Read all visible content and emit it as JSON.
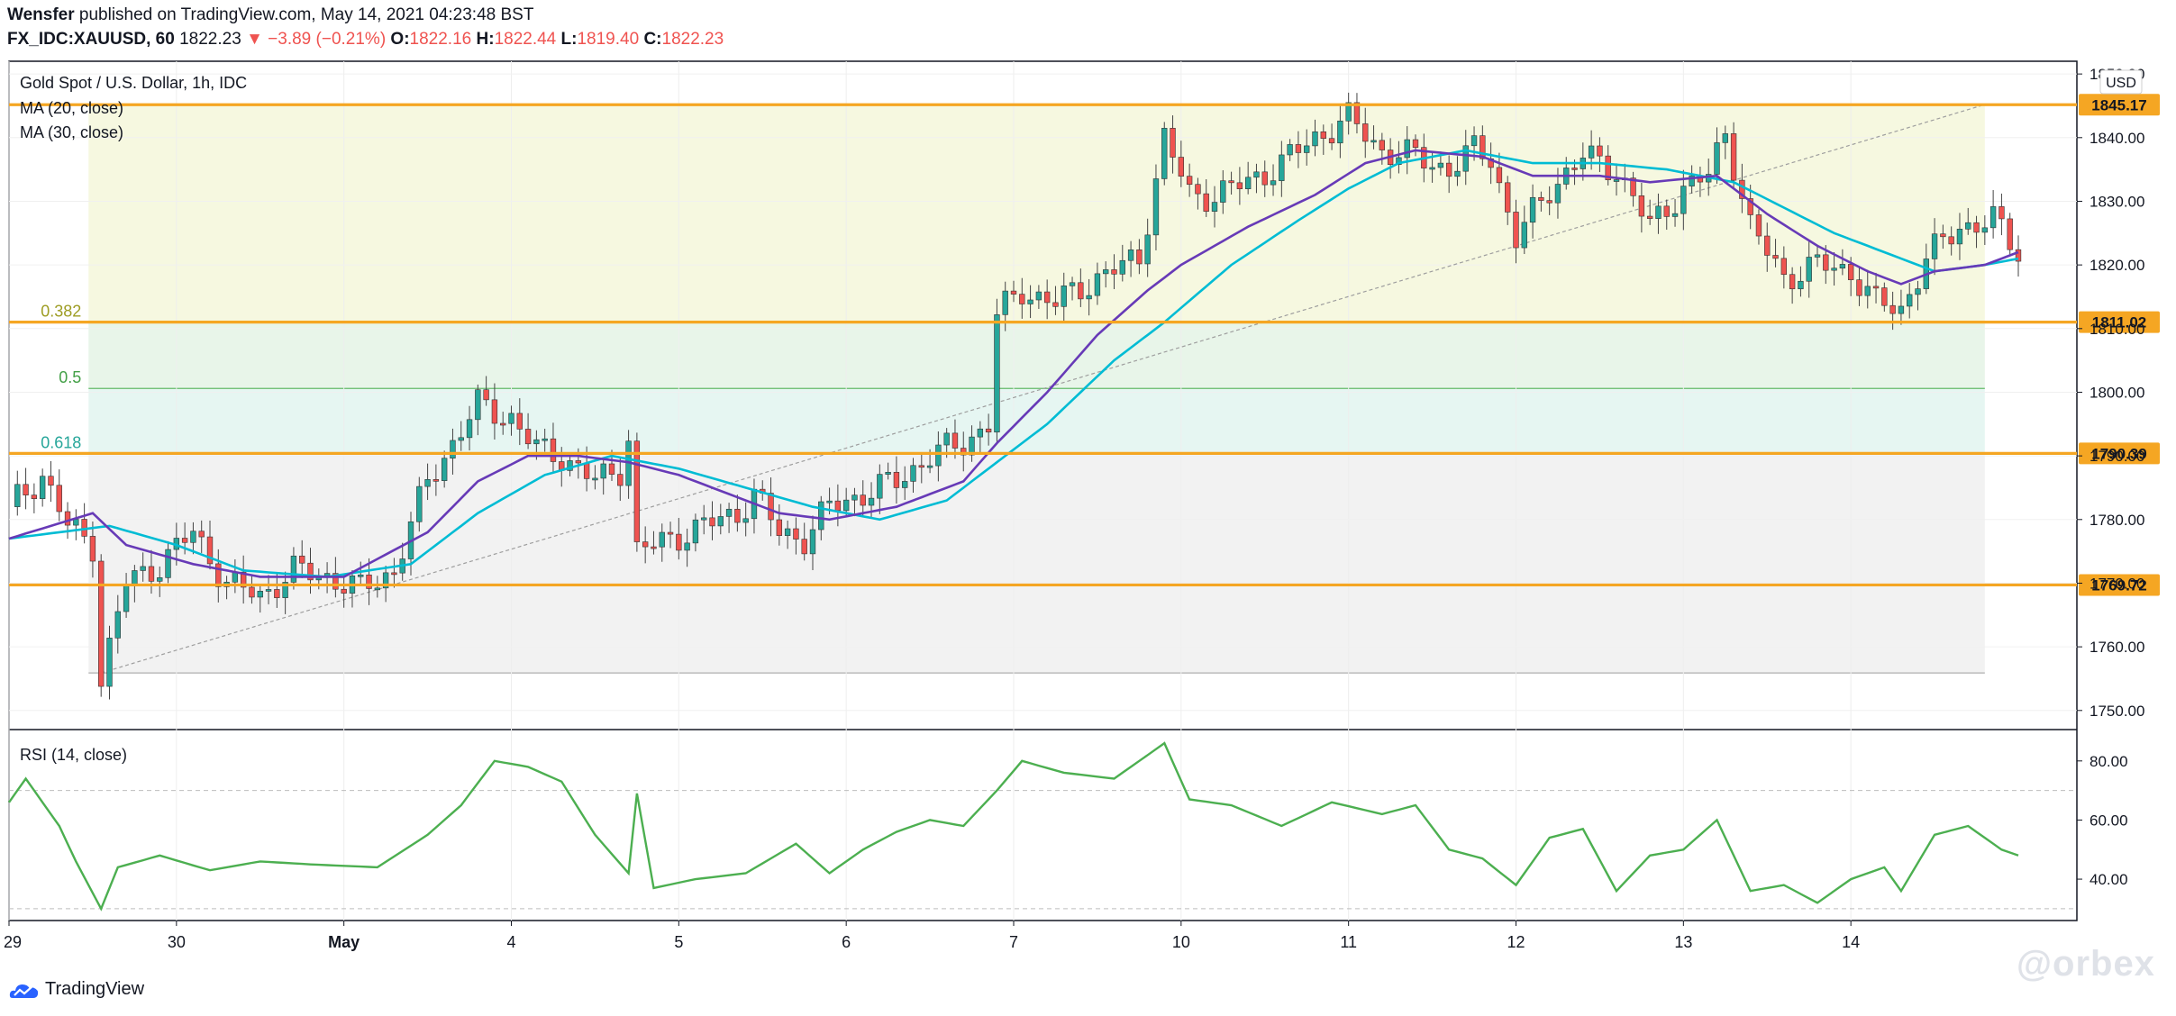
{
  "header": {
    "author": "Wensfer",
    "published": "published on TradingView.com, May 14, 2021 04:23:48 BST",
    "symbol": "FX_IDC:XAUUSD, 60",
    "last": "1822.23",
    "change": "▼ −3.89 (−0.21%)",
    "o_label": "O:",
    "o_value": "1822.16",
    "h_label": "H:",
    "h_value": "1822.44",
    "l_label": "L:",
    "l_value": "1819.40",
    "c_label": "C:",
    "c_value": "1822.23"
  },
  "legend": {
    "title": "Gold Spot / U.S. Dollar, 1h, IDC",
    "ma20": "MA (20, close)",
    "ma30": "MA (30, close)",
    "rsi": "RSI (14, close)"
  },
  "currency": "USD",
  "footer": {
    "logo_text": "TradingView",
    "watermark": "@orbex"
  },
  "colors": {
    "up": "#26a69a",
    "down": "#ef5350",
    "ma20": "#673ab7",
    "ma30": "#00bcd4",
    "hline": "#f5a623",
    "rsi": "#4caf50",
    "fib_0_382": "#f6f8e0",
    "fib_0_5": "#e8f5e9",
    "fib_0_618": "#e6f6f2",
    "fib_1": "#f2f2f2"
  },
  "chart_data": [
    {
      "type": "candlestick",
      "title": "Gold Spot / U.S. Dollar, 1h, IDC",
      "ylim": [
        1747,
        1852
      ],
      "y_ticks": [
        "1850.00",
        "1840.00",
        "1830.00",
        "1820.00",
        "1810.00",
        "1800.00",
        "1790.00",
        "1780.00",
        "1770.00",
        "1760.00",
        "1750.00"
      ],
      "x_ticks": [
        "29",
        "30",
        "May",
        "4",
        "5",
        "6",
        "7",
        "10",
        "11",
        "12",
        "13",
        "14"
      ],
      "horizontal_levels": [
        {
          "value": 1845.17,
          "label": "1845.17"
        },
        {
          "value": 1811.02,
          "label": "1811.02"
        },
        {
          "value": 1790.39,
          "label": "1790.39"
        },
        {
          "value": 1769.72,
          "label": "1769.72"
        }
      ],
      "fib_levels": [
        {
          "ratio": "0.382",
          "value": 1811.0
        },
        {
          "ratio": "0.5",
          "value": 1800.6
        },
        {
          "ratio": "0.618",
          "value": 1790.4
        }
      ],
      "fib_range": {
        "high": 1845.17,
        "low": 1755.9
      },
      "trend_line": [
        {
          "x": "29",
          "y": 1755.9
        },
        {
          "x": "14",
          "y": 1845.2
        }
      ],
      "price_path": [
        [
          0,
          1782
        ],
        [
          4,
          1787
        ],
        [
          7,
          1779
        ],
        [
          10,
          1776
        ],
        [
          11,
          1755
        ],
        [
          14,
          1770
        ],
        [
          18,
          1773
        ],
        [
          22,
          1778
        ],
        [
          26,
          1770
        ],
        [
          30,
          1768
        ],
        [
          34,
          1772
        ],
        [
          38,
          1771
        ],
        [
          42,
          1769
        ],
        [
          46,
          1772
        ],
        [
          50,
          1786
        ],
        [
          54,
          1794
        ],
        [
          56,
          1798
        ],
        [
          60,
          1796
        ],
        [
          63,
          1791
        ],
        [
          66,
          1790
        ],
        [
          70,
          1786
        ],
        [
          73,
          1788
        ],
        [
          74,
          1793
        ],
        [
          75,
          1775
        ],
        [
          79,
          1777
        ],
        [
          83,
          1779
        ],
        [
          87,
          1781
        ],
        [
          89,
          1784
        ],
        [
          92,
          1778
        ],
        [
          95,
          1777
        ],
        [
          98,
          1782
        ],
        [
          102,
          1784
        ],
        [
          106,
          1786
        ],
        [
          110,
          1790
        ],
        [
          114,
          1792
        ],
        [
          117,
          1795
        ],
        [
          118,
          1812
        ],
        [
          121,
          1816
        ],
        [
          125,
          1814
        ],
        [
          130,
          1818
        ],
        [
          135,
          1821
        ],
        [
          138,
          1840
        ],
        [
          141,
          1831
        ],
        [
          144,
          1831
        ],
        [
          148,
          1833
        ],
        [
          152,
          1836
        ],
        [
          156,
          1840
        ],
        [
          160,
          1843
        ],
        [
          164,
          1838
        ],
        [
          168,
          1837
        ],
        [
          172,
          1835
        ],
        [
          175,
          1838
        ],
        [
          177,
          1837
        ],
        [
          180,
          1824
        ],
        [
          184,
          1832
        ],
        [
          188,
          1837
        ],
        [
          192,
          1835
        ],
        [
          196,
          1826
        ],
        [
          200,
          1832
        ],
        [
          203,
          1834
        ],
        [
          205,
          1841
        ],
        [
          208,
          1826
        ],
        [
          212,
          1818
        ],
        [
          216,
          1820
        ],
        [
          220,
          1819
        ],
        [
          223,
          1814
        ],
        [
          226,
          1813
        ],
        [
          229,
          1821
        ],
        [
          233,
          1826
        ],
        [
          237,
          1827
        ],
        [
          240,
          1822
        ]
      ],
      "ma20_path": [
        [
          0,
          1777
        ],
        [
          10,
          1781
        ],
        [
          14,
          1776
        ],
        [
          22,
          1773
        ],
        [
          30,
          1771
        ],
        [
          40,
          1771
        ],
        [
          50,
          1778
        ],
        [
          56,
          1786
        ],
        [
          62,
          1790
        ],
        [
          68,
          1790
        ],
        [
          74,
          1789
        ],
        [
          80,
          1787
        ],
        [
          86,
          1784
        ],
        [
          92,
          1781
        ],
        [
          98,
          1780
        ],
        [
          106,
          1782
        ],
        [
          114,
          1786
        ],
        [
          118,
          1792
        ],
        [
          124,
          1800
        ],
        [
          130,
          1809
        ],
        [
          136,
          1816
        ],
        [
          140,
          1820
        ],
        [
          148,
          1826
        ],
        [
          156,
          1831
        ],
        [
          162,
          1836
        ],
        [
          168,
          1838
        ],
        [
          176,
          1837
        ],
        [
          182,
          1834
        ],
        [
          190,
          1834
        ],
        [
          196,
          1833
        ],
        [
          204,
          1834
        ],
        [
          210,
          1828
        ],
        [
          216,
          1823
        ],
        [
          222,
          1819
        ],
        [
          226,
          1817
        ],
        [
          230,
          1819
        ],
        [
          236,
          1820
        ],
        [
          240,
          1822
        ]
      ],
      "ma30_path": [
        [
          0,
          1777
        ],
        [
          12,
          1779
        ],
        [
          20,
          1776
        ],
        [
          28,
          1772
        ],
        [
          38,
          1771
        ],
        [
          48,
          1773
        ],
        [
          56,
          1781
        ],
        [
          64,
          1787
        ],
        [
          72,
          1790
        ],
        [
          80,
          1788
        ],
        [
          88,
          1785
        ],
        [
          96,
          1782
        ],
        [
          104,
          1780
        ],
        [
          112,
          1783
        ],
        [
          118,
          1789
        ],
        [
          124,
          1795
        ],
        [
          132,
          1805
        ],
        [
          138,
          1811
        ],
        [
          146,
          1820
        ],
        [
          154,
          1827
        ],
        [
          160,
          1832
        ],
        [
          166,
          1836
        ],
        [
          174,
          1838
        ],
        [
          182,
          1836
        ],
        [
          190,
          1836
        ],
        [
          198,
          1835
        ],
        [
          206,
          1833
        ],
        [
          212,
          1829
        ],
        [
          218,
          1825
        ],
        [
          224,
          1822
        ],
        [
          230,
          1819
        ],
        [
          236,
          1820
        ],
        [
          240,
          1821
        ]
      ]
    },
    {
      "type": "line",
      "title": "RSI (14, close)",
      "ylim": [
        26,
        90
      ],
      "y_ticks": [
        "80.00",
        "60.00",
        "40.00"
      ],
      "bands": [
        70,
        30
      ],
      "rsi_path": [
        [
          0,
          66
        ],
        [
          2,
          74
        ],
        [
          6,
          58
        ],
        [
          8,
          46
        ],
        [
          11,
          30
        ],
        [
          13,
          44
        ],
        [
          18,
          48
        ],
        [
          24,
          43
        ],
        [
          30,
          46
        ],
        [
          36,
          45
        ],
        [
          44,
          44
        ],
        [
          50,
          55
        ],
        [
          54,
          65
        ],
        [
          58,
          80
        ],
        [
          62,
          78
        ],
        [
          66,
          73
        ],
        [
          70,
          55
        ],
        [
          74,
          42
        ],
        [
          75,
          69
        ],
        [
          77,
          37
        ],
        [
          82,
          40
        ],
        [
          88,
          42
        ],
        [
          94,
          52
        ],
        [
          98,
          42
        ],
        [
          102,
          50
        ],
        [
          106,
          56
        ],
        [
          110,
          60
        ],
        [
          114,
          58
        ],
        [
          118,
          70
        ],
        [
          121,
          80
        ],
        [
          126,
          76
        ],
        [
          132,
          74
        ],
        [
          138,
          86
        ],
        [
          141,
          67
        ],
        [
          146,
          65
        ],
        [
          152,
          58
        ],
        [
          158,
          66
        ],
        [
          164,
          62
        ],
        [
          168,
          65
        ],
        [
          172,
          50
        ],
        [
          176,
          47
        ],
        [
          180,
          38
        ],
        [
          184,
          54
        ],
        [
          188,
          57
        ],
        [
          192,
          36
        ],
        [
          196,
          48
        ],
        [
          200,
          50
        ],
        [
          204,
          60
        ],
        [
          208,
          36
        ],
        [
          212,
          38
        ],
        [
          216,
          32
        ],
        [
          220,
          40
        ],
        [
          224,
          44
        ],
        [
          226,
          36
        ],
        [
          230,
          55
        ],
        [
          234,
          58
        ],
        [
          238,
          50
        ],
        [
          240,
          48
        ]
      ]
    }
  ]
}
